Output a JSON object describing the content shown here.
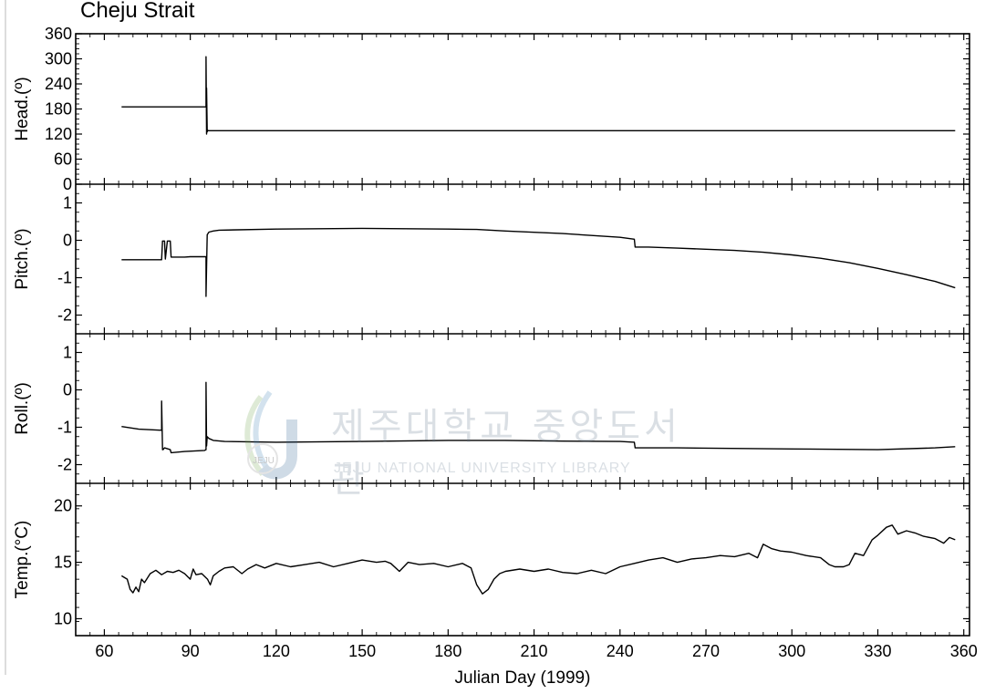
{
  "title": "Cheju Strait",
  "watermark": {
    "text": "제주대학교 중앙도서관",
    "subtext": "JEJU NATIONAL UNIVERSITY  LIBRARY",
    "badge": "JEJU"
  },
  "chart_data": [
    {
      "type": "line",
      "ylabel": "Head.(º)",
      "ylim": [
        0,
        360
      ],
      "yticks": [
        "0",
        "60",
        "120",
        "180",
        "240",
        "300",
        "360"
      ],
      "xlim": [
        50,
        362
      ],
      "series": [
        {
          "x": [
            66,
            95.5,
            95.5,
            95.7,
            95.7,
            95.9,
            95.9,
            96.2,
            96.2,
            357
          ],
          "y": [
            185,
            185,
            305,
            120,
            230,
            125,
            130,
            128,
            128,
            128
          ]
        }
      ]
    },
    {
      "type": "line",
      "ylabel": "Pitch.(º)",
      "ylim": [
        -2.5,
        1.5
      ],
      "yticks": [
        "-2",
        "-1",
        "0",
        "1"
      ],
      "xlim": [
        50,
        362
      ],
      "series": [
        {
          "x": [
            66,
            80,
            80.3,
            81,
            81.3,
            82,
            83,
            83.3,
            88,
            90,
            95.5,
            95.5,
            95.7,
            95.9,
            96.5,
            98,
            100,
            120,
            150,
            180,
            190,
            200,
            220,
            240,
            245,
            245.3,
            250,
            260,
            270,
            280,
            290,
            300,
            310,
            320,
            330,
            340,
            350,
            357
          ],
          "y": [
            -0.52,
            -0.52,
            -0.02,
            -0.02,
            -0.5,
            -0.02,
            -0.02,
            -0.45,
            -0.45,
            -0.44,
            -0.44,
            -1.5,
            -0.7,
            0.15,
            0.22,
            0.25,
            0.27,
            0.3,
            0.32,
            0.3,
            0.29,
            0.25,
            0.18,
            0.08,
            0.03,
            -0.18,
            -0.18,
            -0.21,
            -0.24,
            -0.27,
            -0.32,
            -0.39,
            -0.48,
            -0.6,
            -0.75,
            -0.92,
            -1.1,
            -1.27
          ]
        }
      ]
    },
    {
      "type": "line",
      "ylabel": "Roll.(º)",
      "ylim": [
        -2.5,
        1.5
      ],
      "yticks": [
        "-2",
        "-1",
        "0",
        "1"
      ],
      "xlim": [
        50,
        362
      ],
      "series": [
        {
          "x": [
            66,
            72,
            80,
            80,
            80.3,
            80.5,
            81,
            83,
            83.3,
            88,
            95,
            95.5,
            95.5,
            95.7,
            95.9,
            96.5,
            98,
            102,
            120,
            150,
            180,
            200,
            220,
            240,
            245,
            245.3,
            260,
            300,
            330,
            350,
            357
          ],
          "y": [
            -0.98,
            -1.05,
            -1.08,
            -0.3,
            -1.6,
            -1.6,
            -1.55,
            -1.6,
            -1.68,
            -1.65,
            -1.62,
            -1.6,
            0.2,
            -1.5,
            -1.25,
            -1.3,
            -1.35,
            -1.38,
            -1.4,
            -1.38,
            -1.35,
            -1.35,
            -1.37,
            -1.38,
            -1.4,
            -1.55,
            -1.55,
            -1.58,
            -1.6,
            -1.55,
            -1.52
          ]
        }
      ]
    },
    {
      "type": "line",
      "ylabel": "Temp.(°C)",
      "ylim": [
        8.5,
        22
      ],
      "yticks": [
        "10",
        "15",
        "20"
      ],
      "xlim": [
        50,
        362
      ],
      "series": [
        {
          "x": [
            66,
            68,
            69,
            70,
            71,
            72,
            73,
            74,
            76,
            78,
            80,
            82,
            84,
            86,
            88,
            90,
            91,
            92,
            94,
            96,
            97,
            98,
            100,
            102,
            105,
            108,
            110,
            113,
            116,
            120,
            125,
            130,
            135,
            140,
            145,
            150,
            155,
            158,
            160,
            163,
            166,
            170,
            175,
            180,
            185,
            188,
            190,
            192,
            194,
            196,
            198,
            200,
            205,
            210,
            215,
            220,
            225,
            230,
            235,
            240,
            245,
            250,
            255,
            260,
            265,
            270,
            275,
            280,
            285,
            288,
            290,
            293,
            296,
            300,
            305,
            310,
            313,
            315,
            318,
            320,
            322,
            325,
            328,
            330,
            333,
            335,
            337,
            340,
            343,
            346,
            350,
            353,
            355,
            357
          ],
          "y": [
            13.8,
            13.5,
            12.6,
            12.3,
            12.8,
            12.4,
            13.5,
            13.2,
            14.0,
            14.3,
            13.9,
            14.2,
            14.1,
            14.3,
            14.0,
            13.5,
            14.4,
            13.9,
            14.0,
            13.5,
            13.0,
            13.8,
            14.2,
            14.5,
            14.6,
            14.0,
            14.4,
            14.8,
            14.5,
            14.9,
            14.6,
            14.8,
            15.0,
            14.6,
            14.9,
            15.2,
            15.0,
            15.1,
            14.9,
            14.2,
            15.0,
            14.8,
            14.9,
            14.6,
            14.9,
            14.5,
            13.0,
            12.2,
            12.6,
            13.5,
            14.0,
            14.2,
            14.4,
            14.2,
            14.4,
            14.1,
            14.0,
            14.3,
            14.0,
            14.6,
            14.9,
            15.2,
            15.4,
            15.0,
            15.3,
            15.4,
            15.6,
            15.5,
            15.8,
            15.4,
            16.6,
            16.2,
            16.0,
            15.9,
            15.6,
            15.4,
            14.8,
            14.6,
            14.6,
            14.8,
            15.8,
            15.6,
            17.0,
            17.4,
            18.1,
            18.3,
            17.5,
            17.8,
            17.6,
            17.3,
            17.1,
            16.7,
            17.2,
            17.0
          ]
        }
      ]
    },
    {
      "type": "axis",
      "xlabel": "Julian Day (1999)",
      "xlim": [
        50,
        362
      ],
      "xticks": [
        "60",
        "90",
        "120",
        "150",
        "180",
        "210",
        "240",
        "270",
        "300",
        "330",
        "360"
      ]
    }
  ]
}
